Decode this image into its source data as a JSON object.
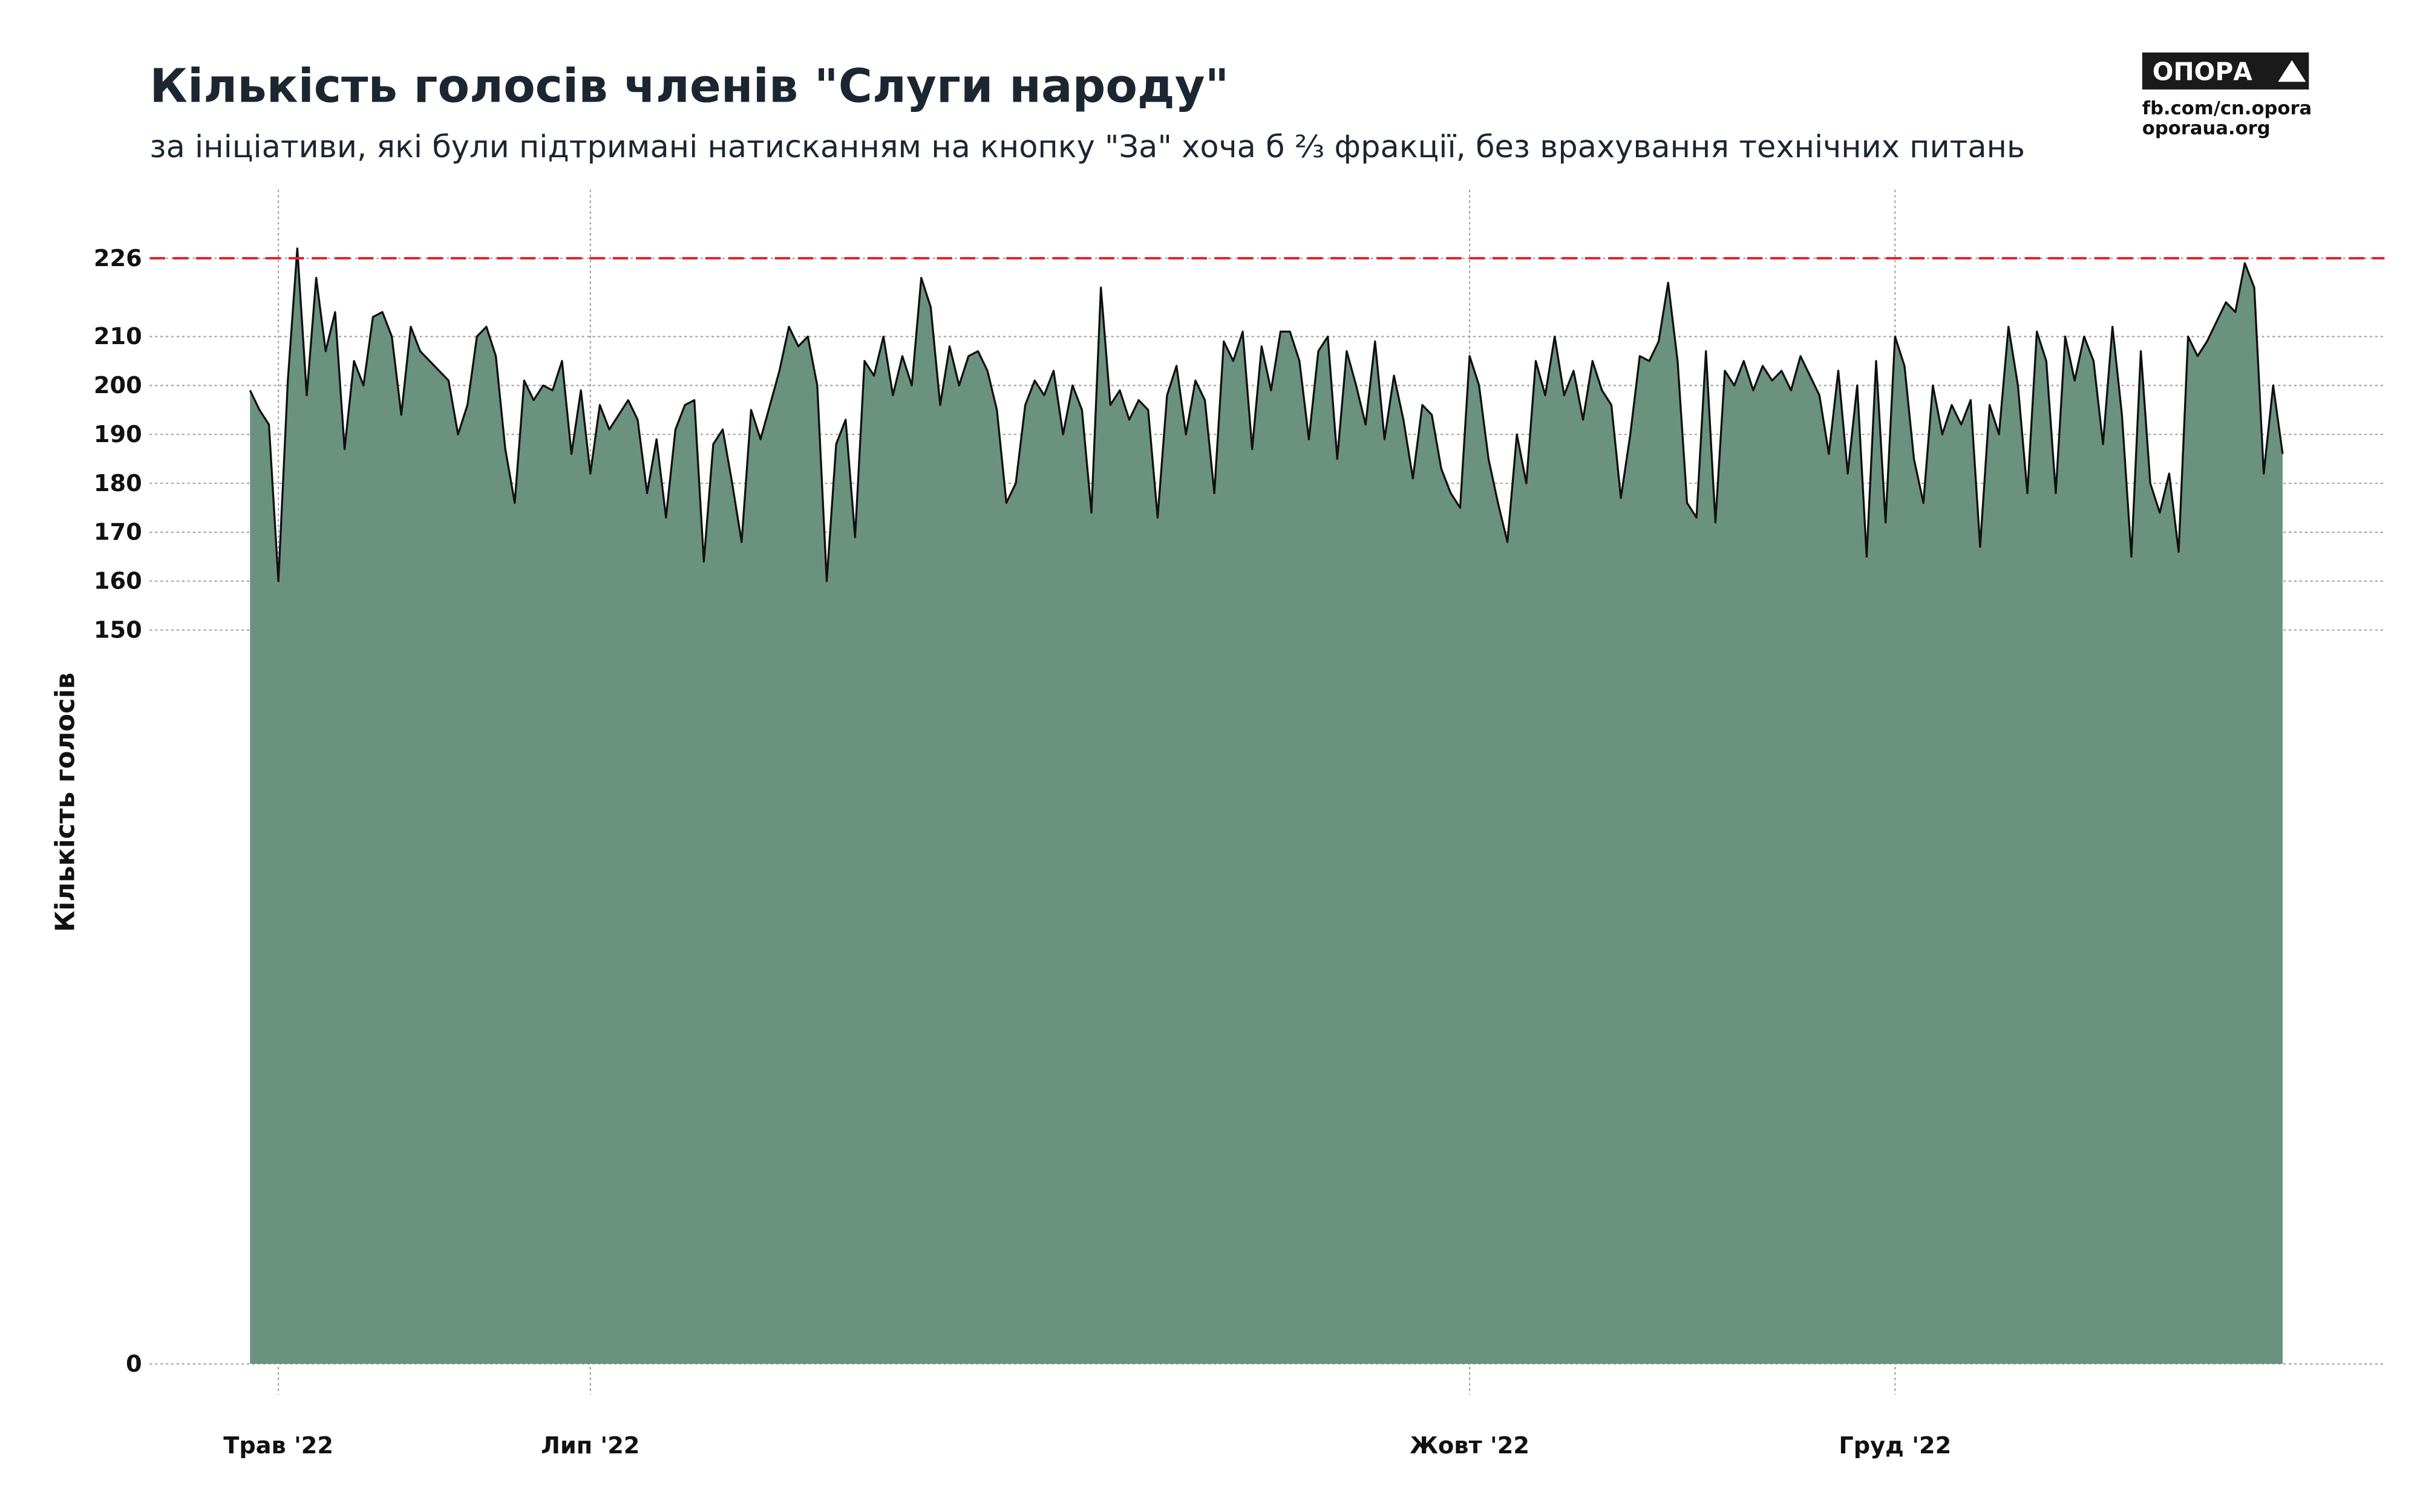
{
  "chart_data": {
    "type": "area",
    "title": "Кількість голосів членів \"Слуги народу\"",
    "subtitle": "за ініціативи, які були підтримані натисканням на кнопку \"За\" хоча б ⅔ фракції, без врахування технічних питань",
    "y_label": "Кількість голосів",
    "logo": {
      "name": "ОПОРА",
      "links": [
        "fb.com/cn.opora",
        "oporaua.org"
      ]
    },
    "fill_color": "#6b927f",
    "line_color": "#111111",
    "reference_line": {
      "value": 226,
      "color": "#e8202a"
    },
    "ylim": [
      0,
      240
    ],
    "yticks": [
      0,
      150,
      160,
      170,
      180,
      190,
      200,
      210,
      226
    ],
    "grid": true,
    "categories": [
      null,
      null,
      null,
      "Трав '22",
      null,
      null,
      null,
      null,
      null,
      null,
      null,
      null,
      null,
      null,
      null,
      null,
      null,
      null,
      null,
      null,
      null,
      null,
      null,
      null,
      null,
      null,
      null,
      null,
      null,
      null,
      null,
      null,
      null,
      null,
      null,
      null,
      "Лип '22",
      null,
      null,
      null,
      null,
      null,
      null,
      null,
      null,
      null,
      null,
      null,
      null,
      null,
      null,
      null,
      null,
      null,
      null,
      null,
      null,
      null,
      null,
      null,
      null,
      null,
      null,
      null,
      null,
      null,
      null,
      null,
      null,
      null,
      null,
      null,
      null,
      null,
      null,
      null,
      null,
      null,
      null,
      null,
      null,
      null,
      null,
      null,
      null,
      null,
      null,
      null,
      null,
      null,
      null,
      null,
      null,
      null,
      null,
      null,
      null,
      null,
      null,
      null,
      null,
      null,
      null,
      null,
      null,
      null,
      null,
      null,
      null,
      null,
      null,
      null,
      null,
      null,
      null,
      null,
      null,
      null,
      null,
      null,
      null,
      null,
      null,
      null,
      null,
      null,
      null,
      null,
      null,
      "Жовт '22",
      null,
      null,
      null,
      null,
      null,
      null,
      null,
      null,
      null,
      null,
      null,
      null,
      null,
      null,
      null,
      null,
      null,
      null,
      null,
      null,
      null,
      null,
      null,
      null,
      null,
      null,
      null,
      null,
      null,
      null,
      null,
      null,
      null,
      null,
      null,
      null,
      null,
      null,
      null,
      null,
      null,
      null,
      null,
      null,
      "Груд '22",
      null,
      null,
      null,
      null,
      null,
      null,
      null,
      null,
      null,
      null,
      null,
      null,
      null,
      null,
      null,
      null,
      null,
      null,
      null,
      null,
      null,
      null,
      null,
      null,
      null,
      null,
      null,
      null,
      null,
      null,
      null,
      null,
      null,
      null,
      null,
      null,
      null,
      null,
      null,
      null,
      null
    ],
    "values": [
      199,
      195,
      192,
      160,
      201,
      228,
      198,
      222,
      207,
      215,
      187,
      205,
      200,
      214,
      215,
      210,
      194,
      212,
      207,
      205,
      203,
      201,
      190,
      196,
      210,
      212,
      206,
      187,
      176,
      201,
      197,
      200,
      199,
      205,
      186,
      199,
      182,
      196,
      191,
      194,
      197,
      193,
      178,
      189,
      173,
      191,
      196,
      197,
      164,
      188,
      191,
      180,
      168,
      195,
      189,
      196,
      203,
      212,
      208,
      210,
      200,
      160,
      188,
      193,
      169,
      205,
      202,
      210,
      198,
      206,
      200,
      222,
      216,
      196,
      208,
      200,
      206,
      207,
      203,
      195,
      176,
      180,
      196,
      201,
      198,
      203,
      190,
      200,
      195,
      174,
      220,
      196,
      199,
      193,
      197,
      195,
      173,
      198,
      204,
      190,
      201,
      197,
      178,
      209,
      205,
      211,
      187,
      208,
      199,
      211,
      211,
      205,
      189,
      207,
      210,
      185,
      207,
      200,
      192,
      209,
      189,
      202,
      193,
      181,
      196,
      194,
      183,
      178,
      175,
      206,
      200,
      185,
      176,
      168,
      190,
      180,
      205,
      198,
      210,
      198,
      203,
      193,
      205,
      199,
      196,
      177,
      190,
      206,
      205,
      209,
      221,
      205,
      176,
      173,
      207,
      172,
      203,
      200,
      205,
      199,
      204,
      201,
      203,
      199,
      206,
      202,
      198,
      186,
      203,
      182,
      200,
      165,
      205,
      172,
      210,
      204,
      185,
      176,
      200,
      190,
      196,
      192,
      197,
      167,
      196,
      190,
      212,
      200,
      178,
      211,
      205,
      178,
      210,
      201,
      210,
      205,
      188,
      212,
      194,
      165,
      207,
      180,
      174,
      182,
      166,
      210,
      206,
      209,
      213,
      217,
      215,
      225,
      220,
      182,
      200,
      186
    ]
  }
}
